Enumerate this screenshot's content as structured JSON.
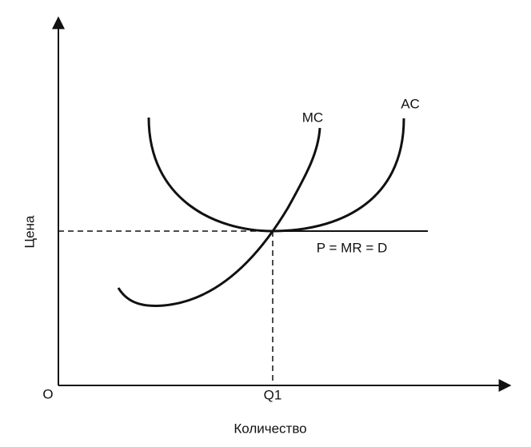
{
  "axes": {
    "y_label": "Цена",
    "x_label": "Количество",
    "origin": "O"
  },
  "labels": {
    "q1": "Q1",
    "mc": "MC",
    "ac": "AC",
    "price_line": "P = MR = D"
  }
}
